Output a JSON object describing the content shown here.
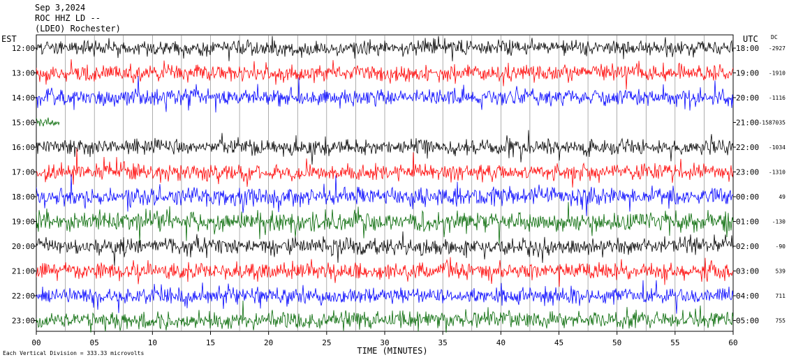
{
  "header": {
    "line1": "Sep 3,2024",
    "line2": "ROC HHZ LD --",
    "line3": "(LDEO) Rochester)"
  },
  "footer": {
    "scale_note": "Each Vertical Division =  333.33 microvolts"
  },
  "chart_data": {
    "type": "line",
    "title": "",
    "xlabel": "TIME (MINUTES)",
    "left_axis_title": "EST",
    "right_axis_title": "UTC",
    "dc_title": "DC",
    "xlim": [
      0,
      60
    ],
    "x_ticks": [
      "00",
      "05",
      "10",
      "15",
      "20",
      "25",
      "30",
      "35",
      "40",
      "45",
      "50",
      "55",
      "60"
    ],
    "trace_colors": [
      "#000000",
      "#ff0000",
      "#0000ff",
      "#006600"
    ],
    "rows": [
      {
        "est": "12:00",
        "utc": "18:00",
        "dc": "-2927"
      },
      {
        "est": "13:00",
        "utc": "19:00",
        "dc": "-1910"
      },
      {
        "est": "14:00",
        "utc": "20:00",
        "dc": "-1116"
      },
      {
        "est": "15:00",
        "utc": "21:00",
        "dc": "-1587035"
      },
      {
        "est": "16:00",
        "utc": "22:00",
        "dc": "-1034"
      },
      {
        "est": "17:00",
        "utc": "23:00",
        "dc": "-1310"
      },
      {
        "est": "18:00",
        "utc": "00:00",
        "dc": "49"
      },
      {
        "est": "19:00",
        "utc": "01:00",
        "dc": "-130"
      },
      {
        "est": "20:00",
        "utc": "02:00",
        "dc": "-90"
      },
      {
        "est": "21:00",
        "utc": "03:00",
        "dc": "539"
      },
      {
        "est": "22:00",
        "utc": "04:00",
        "dc": "711"
      },
      {
        "est": "23:00",
        "utc": "05:00",
        "dc": "755"
      }
    ],
    "grid": true,
    "vertical_grid_step_minutes": 2.5
  }
}
